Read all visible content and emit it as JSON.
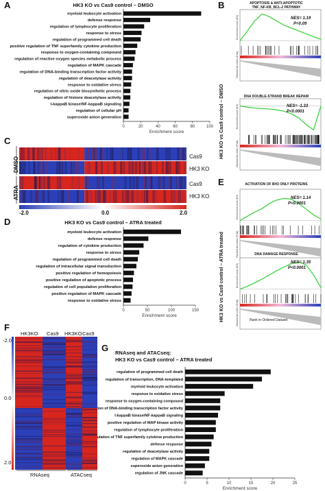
{
  "panels": {
    "A": "A",
    "B": "B",
    "C": "C",
    "D": "D",
    "E": "E",
    "F": "F",
    "G": "G"
  },
  "panel_A": {
    "title": "HK3 KO vs Cas9 control – DMSO",
    "xlabel": "Enrichment score"
  },
  "panel_D": {
    "title": "HK3 KO vs Cas9 control – ATRA treated",
    "xlabel": "Enrichment score"
  },
  "panel_G": {
    "title_line1": "RNAseq and ATACseq:",
    "title_line2": "HK3 KO vs Cas9 control – ATRA treated",
    "xlabel": "Enrichment score"
  },
  "panel_B": {
    "side_label": "HK3 KO vs Cas9 control – DMSO",
    "gsea1": {
      "title_line1": "APOPTOSIS & ANTI-APOPTOTIC",
      "title_line2": "TNF_NF-KB_BCL-2 PATHWAY",
      "nes": "NES= 1.19",
      "p": "P=0.09"
    },
    "gsea2": {
      "title_line1": "DNA DOUBLE-STRAND BREAK REPAIR",
      "title_line2": "",
      "nes": "NES= -1.33",
      "p": "P<0.0001"
    }
  },
  "panel_E": {
    "side_label": "HK3 KO vs Cas9 control – ATRA treated",
    "gsea1": {
      "title_line1": "ACTIVATION OF BH3 ONLY PROTEINS",
      "title_line2": "",
      "nes": "NES= 1.14",
      "p": "P<0.0001"
    },
    "gsea2": {
      "title_line1": "DNA DAMAGE RESPONSE",
      "title_line2": "",
      "nes": "NES= 1.35",
      "p": "P<0.0001"
    },
    "xaxis": "Rank in Ordered Dataset"
  },
  "gsea_axis": {
    "es": "Enrichment score (ES)",
    "metric": "Ranked list metric (FVal)"
  },
  "panel_C": {
    "row_labels": [
      "Cas9",
      "HK3 KO",
      "Cas9",
      "HK3 KO"
    ],
    "groups": [
      "DMSO",
      "ATRA"
    ],
    "scale": [
      "-2.0",
      "0.0",
      "2.0"
    ]
  },
  "panel_F": {
    "col_labels": [
      "HK3KO",
      "Cas9",
      "HK3KO",
      "Cas9"
    ],
    "bottom_labels": [
      "RNAseq",
      "ATACseq"
    ],
    "scale": [
      "-2.0",
      "0.0",
      "2.0"
    ]
  },
  "chart_data": [
    {
      "type": "bar",
      "title": "HK3 KO vs Cas9 control – DMSO",
      "xlabel": "Enrichment score",
      "xlim": [
        0,
        100
      ],
      "xticks": [
        "0",
        "20",
        "40",
        "60",
        "80",
        "100"
      ],
      "categories": [
        "myeloid leukocyte activation",
        "defense response",
        "regulation of lymphocyte proliferation",
        "response to stress",
        "regulation of programmed cell death",
        "positive regulation of TNF superfamily cytokine production",
        "response to oxygen-containing compound",
        "regulation of reactive oxygen species metabolic process",
        "regulation of MAPK cascade",
        "regulation of DNA-binding transcription factor activity",
        "regulation of deacetylase activity",
        "response to oxidative stress",
        "regulation of nitric oxide biosynthetic process",
        "regulation of histone deacetylase activity",
        "I-kappaB kinase/NF-kappaB signaling",
        "regulation of cellular pH",
        "superoxide anion generation"
      ],
      "values": [
        90,
        31,
        24,
        21,
        20,
        16,
        14,
        13,
        11,
        10,
        10,
        9,
        8,
        8,
        7,
        6,
        6
      ]
    },
    {
      "type": "bar",
      "title": "HK3 KO vs Cas9 control – ATRA treated",
      "xlabel": "Enrichment score",
      "xlim": [
        0,
        150
      ],
      "xticks": [
        "0",
        "50",
        "100",
        "150"
      ],
      "categories": [
        "myeloid leukocyte activation",
        "defense response",
        "regulation of cytokine production",
        "response to stress",
        "regulation of programmed cell death",
        "regulation of intracellular signal transduction",
        "positive regulation of hemopoiesis",
        "positive regulation of apoptotic process",
        "regulation of cell population proliferation",
        "positive regulation of MAPK cascade",
        "response to oxidative stress"
      ],
      "values": [
        120,
        52,
        42,
        33,
        30,
        27,
        22,
        20,
        19,
        17,
        15
      ]
    },
    {
      "type": "bar",
      "title": "RNAseq and ATACseq: HK3 KO vs Cas9 control – ATRA treated",
      "xlabel": "Enrichment score",
      "xlim": [
        0,
        25
      ],
      "xticks": [
        "0",
        "5",
        "10",
        "15",
        "20",
        "25"
      ],
      "categories": [
        "regulation of programmed cell death",
        "regulation of transcription, DNA-templated",
        "myeloid leukocyte activation",
        "response to oxidative stress",
        "response to oxygen-containing compound",
        "regulation of DNA-binding transcription factor activity",
        "I-kappaB kinase/NF-kappaB signaling",
        "positive regulation of MAP kinase activity",
        "regulation of lymphocyte proliferation",
        "positive regulation of TNF superfamily cytokine production",
        "defense response",
        "regulation of deacetylase activity",
        "regulation of MAPK cascade",
        "superoxide anion generation",
        "regulation of JNK cascade"
      ],
      "values": [
        19.5,
        17.5,
        15.5,
        9,
        8,
        8,
        7.5,
        7,
        7,
        6.5,
        6,
        5.5,
        5.5,
        4.5,
        4
      ]
    }
  ],
  "colors": {
    "bar": "#111111",
    "red": "#d7261e",
    "blue": "#2b3fb8",
    "green": "#3fd13f"
  }
}
